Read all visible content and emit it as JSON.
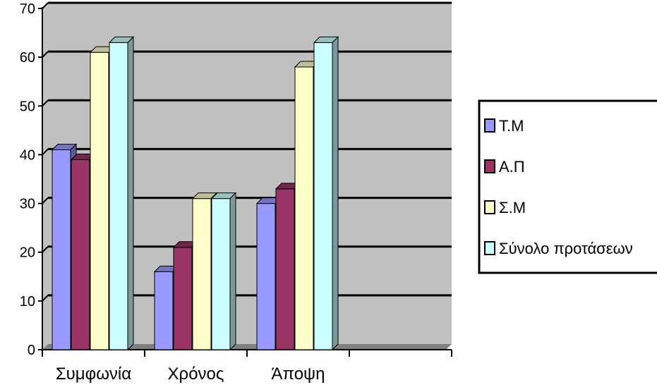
{
  "chart_data": {
    "type": "bar",
    "categories": [
      "Συμφωνία",
      "Χρόνος",
      "Άποψη"
    ],
    "series": [
      {
        "name": "Τ.Μ",
        "values": [
          41,
          16,
          30
        ],
        "color": "#9999ff"
      },
      {
        "name": "Α.Π",
        "values": [
          39,
          21,
          33
        ],
        "color": "#993366"
      },
      {
        "name": "Σ.Μ",
        "values": [
          61,
          31,
          58
        ],
        "color": "#ffffcc"
      },
      {
        "name": "Σύνολο προτάσεων",
        "values": [
          63,
          31,
          63
        ],
        "color": "#ccffff"
      }
    ],
    "ylim": [
      0,
      70
    ],
    "yticks": [
      "0",
      "10",
      "20",
      "30",
      "40",
      "50",
      "60",
      "70"
    ],
    "grid": true,
    "legend_position": "right",
    "wall_color": "#c0c0c0"
  }
}
